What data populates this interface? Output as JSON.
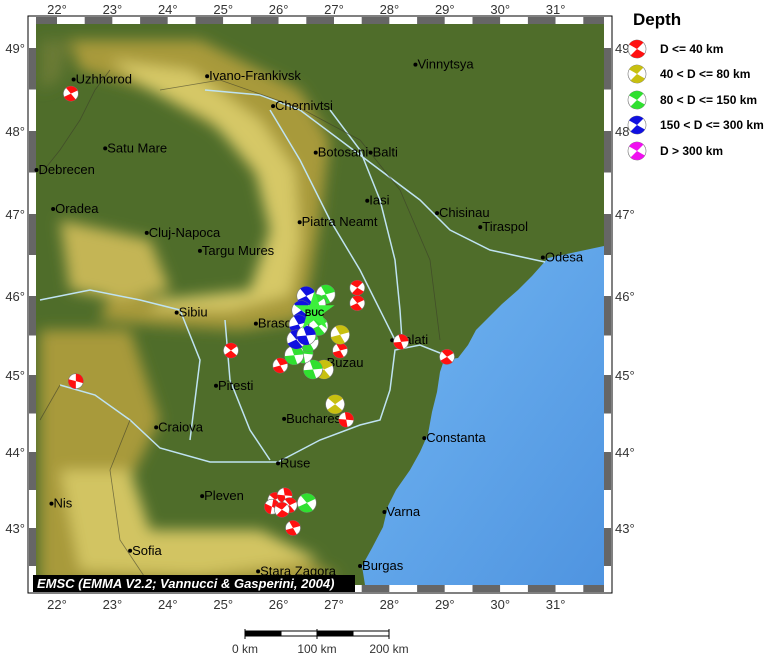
{
  "axes": {
    "lon_ticks": [
      {
        "value": 22,
        "label": "22°"
      },
      {
        "value": 23,
        "label": "23°"
      },
      {
        "value": 24,
        "label": "24°"
      },
      {
        "value": 25,
        "label": "25°"
      },
      {
        "value": 26,
        "label": "26°"
      },
      {
        "value": 27,
        "label": "27°"
      },
      {
        "value": 28,
        "label": "28°"
      },
      {
        "value": 29,
        "label": "29°"
      },
      {
        "value": 30,
        "label": "30°"
      },
      {
        "value": 31,
        "label": "31°"
      }
    ],
    "lat_ticks": [
      {
        "value": 49,
        "label": "49°"
      },
      {
        "value": 48,
        "label": "48°"
      },
      {
        "value": 47,
        "label": "47°"
      },
      {
        "value": 46,
        "label": "46°"
      },
      {
        "value": 45,
        "label": "45°"
      },
      {
        "value": 44,
        "label": "44°"
      },
      {
        "value": 43,
        "label": "43°"
      }
    ]
  },
  "colors": {
    "land_low": "#4f6d2a",
    "land_high": "#d9cd6c",
    "sea": "#5ea4ec",
    "river": "#bfe3f2"
  },
  "cities": [
    {
      "name": "Vinnytsya",
      "lon": 28.47,
      "lat": 48.8
    },
    {
      "name": "Uzhhorod",
      "lon": 22.3,
      "lat": 48.62
    },
    {
      "name": "Ivano-Frankivsk",
      "lon": 24.71,
      "lat": 48.66
    },
    {
      "name": "Chernivtsi",
      "lon": 25.9,
      "lat": 48.3
    },
    {
      "name": "Satu Mare",
      "lon": 22.87,
      "lat": 47.79
    },
    {
      "name": "Debrecen",
      "lon": 21.63,
      "lat": 47.53
    },
    {
      "name": "Botosani",
      "lon": 26.67,
      "lat": 47.74
    },
    {
      "name": "Balti",
      "lon": 27.66,
      "lat": 47.74
    },
    {
      "name": "Oradea",
      "lon": 21.93,
      "lat": 47.06
    },
    {
      "name": "Iasi",
      "lon": 27.6,
      "lat": 47.16
    },
    {
      "name": "Piatra Neamt",
      "lon": 26.38,
      "lat": 46.9
    },
    {
      "name": "Chisinau",
      "lon": 28.86,
      "lat": 47.01
    },
    {
      "name": "Tiraspol",
      "lon": 29.64,
      "lat": 46.84
    },
    {
      "name": "Cluj-Napoca",
      "lon": 23.62,
      "lat": 46.77
    },
    {
      "name": "Targu Mures",
      "lon": 24.58,
      "lat": 46.55
    },
    {
      "name": "Odesa",
      "lon": 30.77,
      "lat": 46.47
    },
    {
      "name": "Sibiu",
      "lon": 24.16,
      "lat": 45.79
    },
    {
      "name": "Brasov",
      "lon": 25.59,
      "lat": 45.65
    },
    {
      "name": "Galati",
      "lon": 28.05,
      "lat": 45.44
    },
    {
      "name": "Buzau",
      "lon": 26.83,
      "lat": 45.15
    },
    {
      "name": "Pitesti",
      "lon": 24.87,
      "lat": 44.86
    },
    {
      "name": "Craiova",
      "lon": 23.79,
      "lat": 44.32
    },
    {
      "name": "Bucharest",
      "lon": 26.1,
      "lat": 44.43
    },
    {
      "name": "Constanta",
      "lon": 28.63,
      "lat": 44.18
    },
    {
      "name": "Ruse",
      "lon": 25.99,
      "lat": 43.85
    },
    {
      "name": "Nis",
      "lon": 21.9,
      "lat": 43.32
    },
    {
      "name": "Pleven",
      "lon": 24.62,
      "lat": 43.42
    },
    {
      "name": "Varna",
      "lon": 27.91,
      "lat": 43.21
    },
    {
      "name": "Sofia",
      "lon": 23.32,
      "lat": 42.7
    },
    {
      "name": "Stara Zagora",
      "lon": 25.63,
      "lat": 42.43
    },
    {
      "name": "Burgas",
      "lon": 27.47,
      "lat": 42.5
    }
  ],
  "epicenter": {
    "label": "BUC",
    "lon": 26.65,
    "lat": 45.8,
    "color": "#3cf03c"
  },
  "events": [
    {
      "lon": 22.25,
      "lat": 48.45,
      "depth": "D <= 40 km",
      "strike": 30
    },
    {
      "lon": 22.34,
      "lat": 44.92,
      "depth": "D <= 40 km",
      "strike": 70
    },
    {
      "lon": 25.14,
      "lat": 45.31,
      "depth": "D <= 40 km",
      "strike": 20
    },
    {
      "lon": 26.03,
      "lat": 45.12,
      "depth": "D <= 40 km",
      "strike": 40
    },
    {
      "lon": 27.42,
      "lat": 46.1,
      "depth": "D <= 40 km",
      "strike": 10
    },
    {
      "lon": 27.42,
      "lat": 45.91,
      "depth": "D <= 40 km",
      "strike": 30
    },
    {
      "lon": 28.21,
      "lat": 45.42,
      "depth": "D <= 40 km",
      "strike": 50
    },
    {
      "lon": 29.04,
      "lat": 45.23,
      "depth": "D <= 40 km",
      "strike": 25
    },
    {
      "lon": 27.22,
      "lat": 44.42,
      "depth": "D <= 40 km",
      "strike": 60
    },
    {
      "lon": 27.11,
      "lat": 45.31,
      "depth": "D <= 40 km",
      "strike": 40
    },
    {
      "lon": 25.94,
      "lat": 43.37,
      "depth": "D <= 40 km",
      "strike": 20
    },
    {
      "lon": 26.11,
      "lat": 43.43,
      "depth": "D <= 40 km",
      "strike": 60
    },
    {
      "lon": 26.2,
      "lat": 43.3,
      "depth": "D <= 40 km",
      "strike": 30
    },
    {
      "lon": 25.88,
      "lat": 43.28,
      "depth": "D <= 40 km",
      "strike": 80
    },
    {
      "lon": 26.06,
      "lat": 43.24,
      "depth": "D <= 40 km",
      "strike": 10
    },
    {
      "lon": 26.26,
      "lat": 43.0,
      "depth": "D <= 40 km",
      "strike": 40
    },
    {
      "lon": 27.02,
      "lat": 44.62,
      "depth": "40 < D <= 80 km",
      "strike": 20
    },
    {
      "lon": 27.11,
      "lat": 45.51,
      "depth": "40 < D <= 80 km",
      "strike": 40
    },
    {
      "lon": 26.82,
      "lat": 45.07,
      "depth": "40 < D <= 80 km",
      "strike": 30
    },
    {
      "lon": 26.62,
      "lat": 45.07,
      "depth": "80 < D <= 150 km",
      "strike": 50
    },
    {
      "lon": 26.51,
      "lat": 43.33,
      "depth": "80 < D <= 150 km",
      "strike": 30
    },
    {
      "lon": 26.85,
      "lat": 46.02,
      "depth": "80 < D <= 150 km",
      "strike": 40
    },
    {
      "lon": 26.68,
      "lat": 45.9,
      "depth": "80 < D <= 150 km",
      "strike": 20
    },
    {
      "lon": 26.45,
      "lat": 45.27,
      "depth": "80 < D <= 150 km",
      "strike": 60
    },
    {
      "lon": 26.28,
      "lat": 45.25,
      "depth": "80 < D <= 150 km",
      "strike": 50
    },
    {
      "lon": 26.72,
      "lat": 45.62,
      "depth": "80 < D <= 150 km",
      "strike": 30
    },
    {
      "lon": 26.55,
      "lat": 45.42,
      "depth": "80 < D <= 150 km",
      "strike": 40
    },
    {
      "lon": 26.5,
      "lat": 46.0,
      "depth": "150 < D <= 300 km",
      "strike": 30
    },
    {
      "lon": 26.41,
      "lat": 45.82,
      "depth": "150 < D <= 300 km",
      "strike": 20
    },
    {
      "lon": 26.36,
      "lat": 45.64,
      "depth": "150 < D <= 300 km",
      "strike": 40
    },
    {
      "lon": 26.32,
      "lat": 45.45,
      "depth": "150 < D <= 300 km",
      "strike": 30
    },
    {
      "lon": 26.5,
      "lat": 45.5,
      "depth": "150 < D <= 300 km",
      "strike": 50
    }
  ],
  "legend": {
    "title": "Depth",
    "items": [
      {
        "label": "D <= 40 km",
        "color": "#ff1010"
      },
      {
        "label": "40 < D <= 80 km",
        "color": "#c8c010"
      },
      {
        "label": "80 < D <= 150 km",
        "color": "#30e030"
      },
      {
        "label": "150 < D <= 300 km",
        "color": "#1010e0"
      },
      {
        "label": "D > 300 km",
        "color": "#f010f0"
      }
    ]
  },
  "credit": "EMSC (EMMA V2.2; Vannucci & Gasperini, 2004)",
  "scale": {
    "labels": [
      "0 km",
      "100 km",
      "200 km"
    ]
  }
}
